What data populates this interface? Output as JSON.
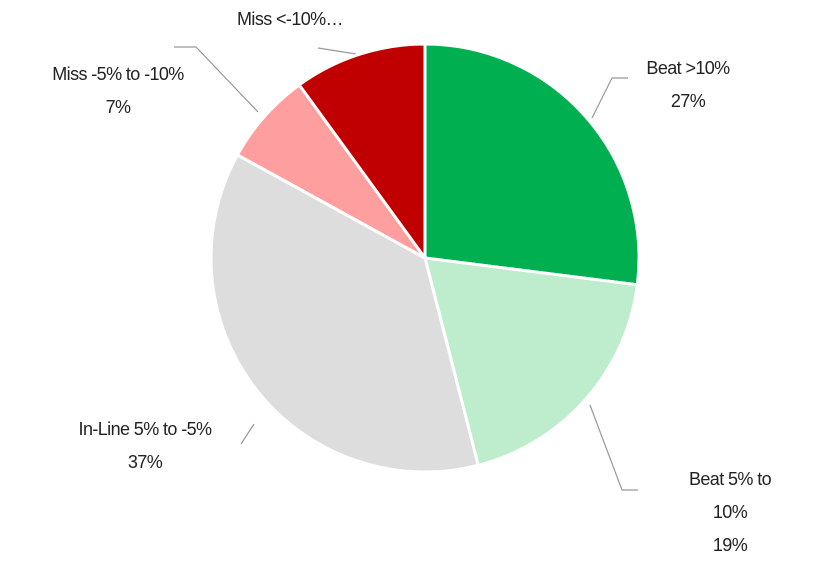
{
  "chart_data": {
    "type": "pie",
    "categories": [
      "Beat >10%",
      "Beat 5% to 10%",
      "In-Line 5% to -5%",
      "Miss -5% to -10%",
      "Miss <-10%…"
    ],
    "values": [
      27,
      19,
      37,
      7,
      10
    ],
    "value_labels": [
      "27%",
      "19%",
      "37%",
      "7%",
      null
    ],
    "colors": [
      "#00b050",
      "#bdedcc",
      "#dddddd",
      "#ff9e9e",
      "#c00000"
    ]
  }
}
